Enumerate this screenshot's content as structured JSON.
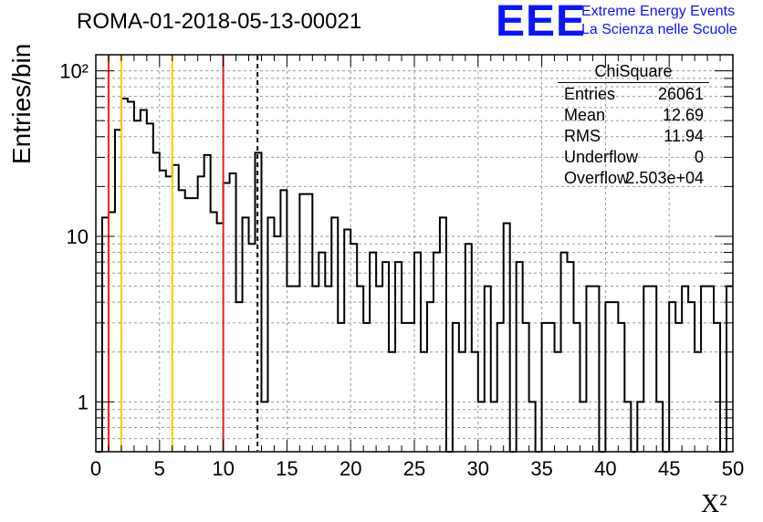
{
  "title": "ROMA-01-2018-05-13-00021",
  "logo": {
    "mark": "EEE",
    "line1": "Extreme Energy Events",
    "line2": "La Scienza nelle Scuole",
    "color": "#0a14ff"
  },
  "axes": {
    "ylabel": "Entries/bin",
    "xlabel": "X²",
    "xticks": [
      "0",
      "5",
      "10",
      "15",
      "20",
      "25",
      "30",
      "35",
      "40",
      "45",
      "50"
    ],
    "yticks": [
      "1",
      "10",
      "10²"
    ]
  },
  "stats_box": {
    "header": "ChiSquare",
    "rows": [
      {
        "key": "Entries",
        "value": "26061"
      },
      {
        "key": "Mean",
        "value": "12.69"
      },
      {
        "key": "RMS",
        "value": "11.94"
      },
      {
        "key": "Underflow",
        "value": "0"
      },
      {
        "key": "Overflow",
        "value": "2.503e+04"
      }
    ]
  },
  "chart_data": {
    "type": "histogram",
    "x_range": [
      0,
      50
    ],
    "y_range": [
      0.5,
      125
    ],
    "y_scale": "log",
    "grid": true,
    "bin_width": 0.5,
    "bin_values": [
      0,
      13,
      14,
      44,
      68,
      65,
      50,
      58,
      48,
      32,
      25,
      23,
      27,
      19,
      17,
      17,
      23,
      31,
      14,
      12,
      21,
      24,
      4,
      13,
      9,
      32,
      1,
      13,
      10,
      19,
      5,
      5,
      18,
      18,
      5,
      8,
      5,
      13,
      3,
      11,
      9,
      5,
      3,
      8,
      5,
      7,
      2,
      7,
      3,
      3,
      8,
      2,
      4,
      8,
      13,
      0,
      3,
      2,
      9,
      2,
      1,
      5,
      1,
      3,
      12,
      0,
      7,
      3,
      1,
      0,
      3,
      3,
      2,
      8,
      7,
      3,
      1,
      5,
      5,
      0,
      4,
      4,
      3,
      1,
      0,
      1,
      5,
      5,
      1,
      0,
      4,
      3,
      5,
      4,
      2,
      5,
      5,
      3,
      0,
      5
    ],
    "reference_lines": [
      {
        "x": 1.0,
        "color": "#e8201c",
        "style": "solid"
      },
      {
        "x": 10.0,
        "color": "#e8201c",
        "style": "solid"
      },
      {
        "x": 2.0,
        "color": "#ffcc00",
        "style": "solid"
      },
      {
        "x": 6.0,
        "color": "#ffcc00",
        "style": "solid"
      },
      {
        "x": 12.69,
        "color": "#000000",
        "style": "dashed"
      }
    ]
  }
}
